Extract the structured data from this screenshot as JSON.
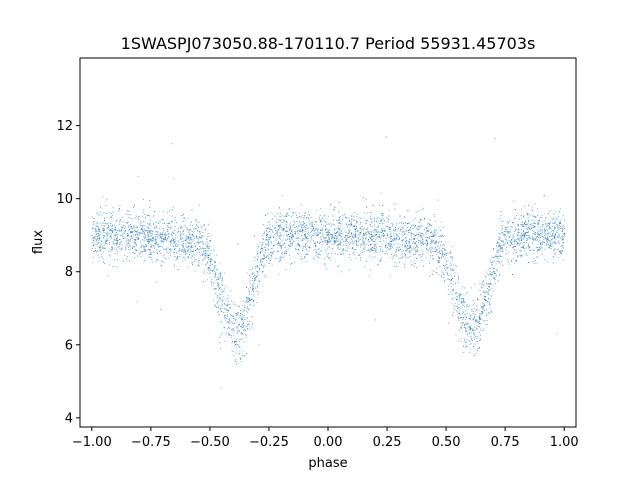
{
  "chart_data": {
    "type": "scatter",
    "title": "1SWASPJ073050.88-170110.7 Period 55931.45703s",
    "xlabel": "phase",
    "ylabel": "flux",
    "xlim": [
      -1.05,
      1.05
    ],
    "ylim": [
      3.75,
      13.85
    ],
    "xticks": [
      -1.0,
      -0.75,
      -0.5,
      -0.25,
      0.0,
      0.25,
      0.5,
      0.75,
      1.0
    ],
    "xtick_labels": [
      "−1.00",
      "−0.75",
      "−0.50",
      "−0.25",
      "0.00",
      "0.25",
      "0.50",
      "0.75",
      "1.00"
    ],
    "yticks": [
      4,
      6,
      8,
      10,
      12
    ],
    "ytick_labels": [
      "4",
      "6",
      "8",
      "10",
      "12"
    ],
    "grid": false,
    "marker_color": "#1f77b4",
    "series": [
      {
        "name": "",
        "x": [
          -1.0,
          -0.95,
          -0.9,
          -0.85,
          -0.8,
          -0.75,
          -0.7,
          -0.65,
          -0.6,
          -0.55,
          -0.52,
          -0.5,
          -0.48,
          -0.46,
          -0.44,
          -0.42,
          -0.4,
          -0.38,
          -0.36,
          -0.34,
          -0.32,
          -0.3,
          -0.28,
          -0.25,
          -0.2,
          -0.15,
          -0.1,
          -0.05,
          0.0,
          0.05,
          0.1,
          0.15,
          0.2,
          0.25,
          0.3,
          0.35,
          0.4,
          0.45,
          0.48,
          0.5,
          0.52,
          0.54,
          0.56,
          0.58,
          0.6,
          0.62,
          0.64,
          0.66,
          0.68,
          0.7,
          0.72,
          0.75,
          0.8,
          0.85,
          0.9,
          0.95,
          1.0
        ],
        "y": [
          9.0,
          9.0,
          9.0,
          9.0,
          9.0,
          9.0,
          8.9,
          8.9,
          8.9,
          8.8,
          8.6,
          8.3,
          7.9,
          7.4,
          7.0,
          6.6,
          6.4,
          6.4,
          6.6,
          7.0,
          7.5,
          8.0,
          8.6,
          8.9,
          9.0,
          9.0,
          9.0,
          9.0,
          9.05,
          9.0,
          9.0,
          9.0,
          9.0,
          9.0,
          8.9,
          8.9,
          8.9,
          8.8,
          8.6,
          8.3,
          7.9,
          7.4,
          7.0,
          6.7,
          6.5,
          6.5,
          6.7,
          7.1,
          7.6,
          8.1,
          8.6,
          8.9,
          9.0,
          9.0,
          9.0,
          9.0,
          9.0
        ]
      }
    ]
  }
}
